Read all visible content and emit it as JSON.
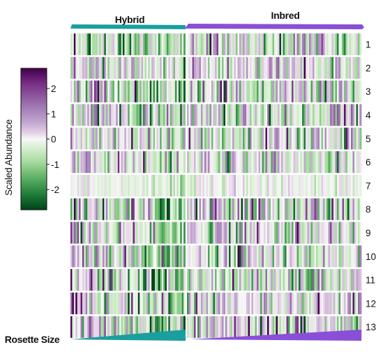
{
  "chart_data": {
    "type": "heatmap",
    "groups": [
      "Hybrid",
      "Inbred"
    ],
    "rows": [
      "1",
      "2",
      "3",
      "4",
      "5",
      "6",
      "7",
      "8",
      "9",
      "10",
      "11",
      "12",
      "13"
    ],
    "colorbar": {
      "label": "Scaled Abundance",
      "ticks": [
        2,
        1,
        0,
        -1,
        -2
      ],
      "tick_labels": [
        "2",
        "1",
        "0",
        "-1",
        "-2"
      ],
      "range": [
        -2.8,
        2.8
      ],
      "colormap": "PRGn",
      "high_color": "#40004b",
      "mid_color": "#f7f7f7",
      "low_color": "#00441b"
    },
    "bottom_label": "Rosette Size",
    "group_colors": {
      "Hybrid": "#1a9e9e",
      "Inbred": "#8a4fd8"
    },
    "row_intensity": [
      0.9,
      0.8,
      0.9,
      0.9,
      0.8,
      0.75,
      0.35,
      1.1,
      0.9,
      1.0,
      0.95,
      0.8,
      1.05
    ],
    "columns_per_group": [
      68,
      100
    ],
    "hybrid_gradient_trend": 1.2
  }
}
